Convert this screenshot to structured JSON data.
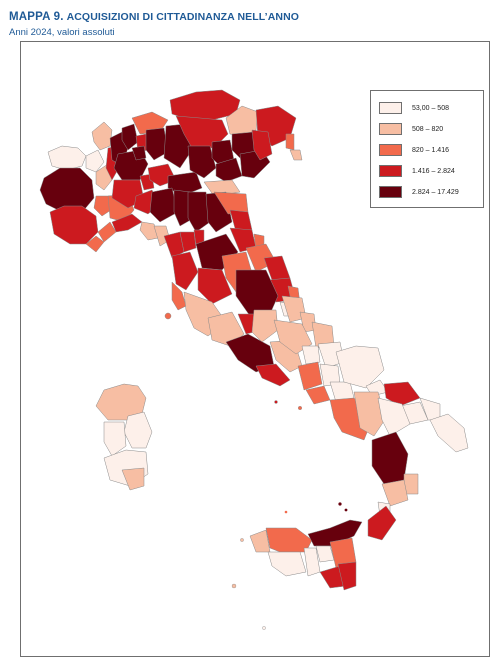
{
  "header": {
    "number": "MAPPA 9.",
    "title": "ACQUISIZIONI DI CITTADINANZA NELL’ANNO",
    "subtitle": "Anni 2024, valori assoluti"
  },
  "legend": {
    "classes": [
      {
        "label": "53,00 – 508",
        "color": "#fdf0ea"
      },
      {
        "label": "508 – 820",
        "color": "#f7bea3"
      },
      {
        "label": "820 – 1.416",
        "color": "#f26a4c"
      },
      {
        "label": "1.416 – 2.824",
        "color": "#cc1a1f"
      },
      {
        "label": "2.824 – 17.429",
        "color": "#67000d"
      }
    ]
  }
}
